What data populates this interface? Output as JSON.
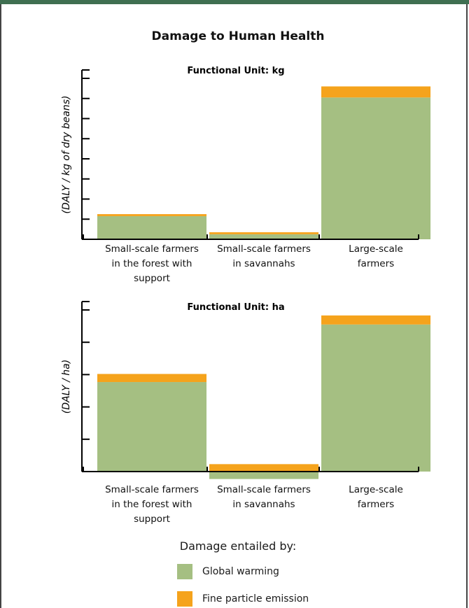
{
  "title": "Damage to Human Health",
  "colors": {
    "global_warming": "#a5bf82",
    "fine_particle": "#f5a31c",
    "axis": "#000000",
    "frame_top": "#3f6f51"
  },
  "legend": {
    "title": "Damage entailed by:",
    "items": [
      {
        "label": "Global warming",
        "color": "#a5bf82"
      },
      {
        "label": "Fine particle emission",
        "color": "#f5a31c"
      }
    ]
  },
  "chart_data": [
    {
      "type": "bar",
      "stacked": true,
      "title": "Functional Unit: kg",
      "ylabel": "(DALY / kg of dry beans)",
      "categories": [
        "Small-scale farmers in the forest with support",
        "Small-scale farmers in savannahs",
        "Large-scale farmers"
      ],
      "category_lines": [
        [
          "Small-scale farmers",
          "in the forest with",
          "support"
        ],
        [
          "Small-scale farmers",
          "in savannahs"
        ],
        [
          "Large-scale",
          "farmers"
        ]
      ],
      "series": [
        {
          "name": "Global warming",
          "values": [
            1.15,
            0.25,
            7.05
          ]
        },
        {
          "name": "Fine particle emission",
          "values": [
            0.1,
            0.1,
            0.55
          ]
        }
      ],
      "ylim": [
        0,
        8
      ],
      "y_ticks": 8,
      "tick_labels_shown": false
    },
    {
      "type": "bar",
      "stacked": true,
      "title": "Functional Unit: ha",
      "ylabel": "(DALY / ha)",
      "categories": [
        "Small-scale farmers in the forest with support",
        "Small-scale farmers in savannahs",
        "Large-scale farmers"
      ],
      "category_lines": [
        [
          "Small-scale farmers",
          "in the forest with",
          "support"
        ],
        [
          "Small-scale farmers",
          "in savannahs"
        ],
        [
          "Large-scale",
          "farmers"
        ]
      ],
      "series": [
        {
          "name": "Global warming",
          "values": [
            2.77,
            -0.23,
            4.55
          ]
        },
        {
          "name": "Fine particle emission",
          "values": [
            0.25,
            0.23,
            0.28
          ]
        }
      ],
      "ylim": [
        0,
        5
      ],
      "y_ticks": 5,
      "tick_labels_shown": false
    }
  ]
}
